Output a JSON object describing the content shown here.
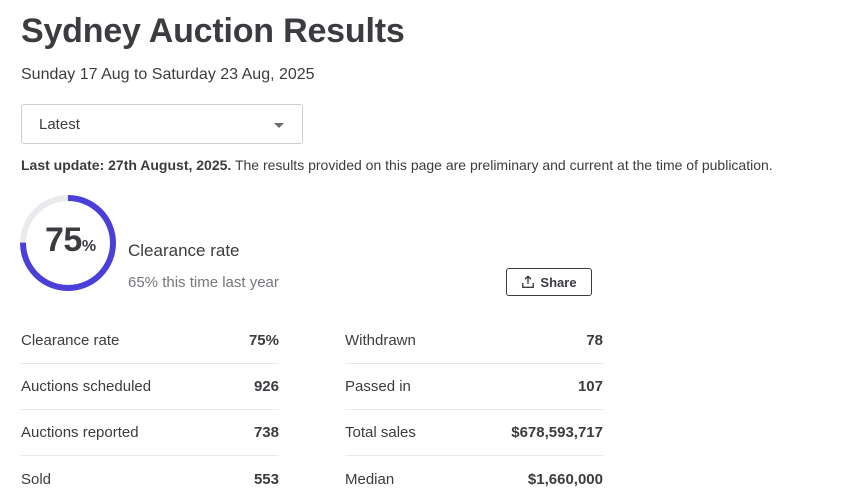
{
  "header": {
    "title": "Sydney Auction Results",
    "date_range": "Sunday 17 Aug to Saturday 23 Aug, 2025"
  },
  "period_select": {
    "selected": "Latest"
  },
  "update_note": {
    "bold": "Last update: 27th August, 2025.",
    "text": " The results provided on this page are preliminary and current at the time of publication."
  },
  "clearance": {
    "value": "75",
    "unit": "%",
    "fraction": 0.75,
    "label": "Clearance rate",
    "last_year": "65% this time last year",
    "ring_color": "#4a3fd8",
    "track_color": "#e9e9ee"
  },
  "share": {
    "label": "Share",
    "icon": "share-upload-icon"
  },
  "stats_left": [
    {
      "label": "Clearance rate",
      "value": "75%"
    },
    {
      "label": "Auctions scheduled",
      "value": "926"
    },
    {
      "label": "Auctions reported",
      "value": "738"
    },
    {
      "label": "Sold",
      "value": "553"
    }
  ],
  "stats_right": [
    {
      "label": "Withdrawn",
      "value": "78"
    },
    {
      "label": "Passed in",
      "value": "107"
    },
    {
      "label": "Total sales",
      "value": "$678,593,717"
    },
    {
      "label": "Median",
      "value": "$1,660,000"
    }
  ]
}
